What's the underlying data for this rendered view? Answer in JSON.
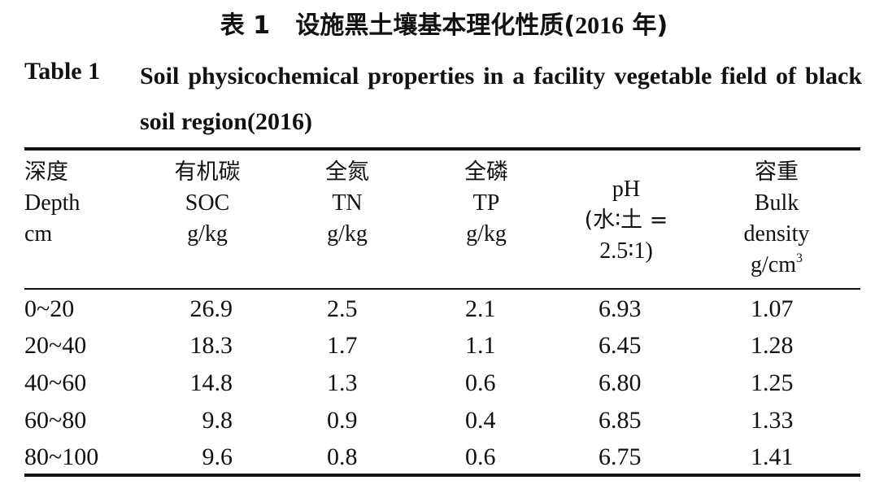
{
  "caption": {
    "cn_label": "表 1",
    "cn_text_pre": "设施黑土壤基本理化性质(",
    "cn_year": "2016",
    "cn_text_post": " 年)",
    "en_label": "Table 1",
    "en_text": "Soil physicochemical properties in a facility vegetable field of black soil region(2016)"
  },
  "table": {
    "headers": [
      {
        "zh": "深度",
        "en": "Depth",
        "unit": "cm"
      },
      {
        "zh": "有机碳",
        "en": "SOC",
        "unit": "g/kg"
      },
      {
        "zh": "全氮",
        "en": "TN",
        "unit": "g/kg"
      },
      {
        "zh": "全磷",
        "en": "TP",
        "unit": "g/kg"
      },
      {
        "en": "pH",
        "line2": "(水∶土 =",
        "line3": "2.5∶1)"
      },
      {
        "zh": "容重",
        "en1": "Bulk",
        "en2": "density",
        "unit_base": "g/cm",
        "unit_sup": "3"
      }
    ],
    "rows": [
      {
        "depth": "0~20",
        "soc": "26.9",
        "tn": "2.5",
        "tp": "2.1",
        "ph": "6.93",
        "bd": "1.07"
      },
      {
        "depth": "20~40",
        "soc": "18.3",
        "tn": "1.7",
        "tp": "1.1",
        "ph": "6.45",
        "bd": "1.28"
      },
      {
        "depth": "40~60",
        "soc": "14.8",
        "tn": "1.3",
        "tp": "0.6",
        "ph": "6.80",
        "bd": "1.25"
      },
      {
        "depth": "60~80",
        "soc": "9.8",
        "tn": "0.9",
        "tp": "0.4",
        "ph": "6.85",
        "bd": "1.33"
      },
      {
        "depth": "80~100",
        "soc": "9.6",
        "tn": "0.8",
        "tp": "0.6",
        "ph": "6.75",
        "bd": "1.41"
      }
    ]
  }
}
